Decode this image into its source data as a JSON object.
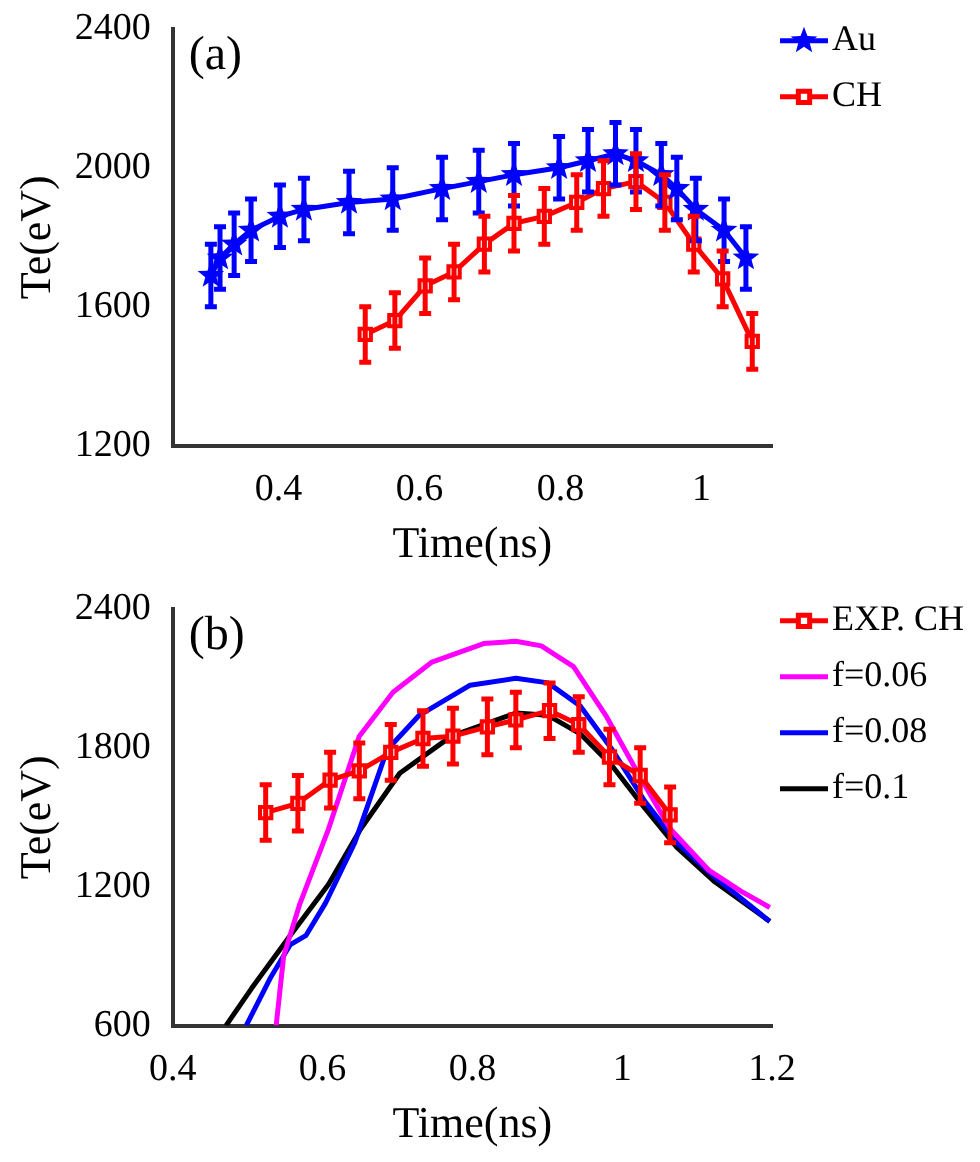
{
  "chart_data": [
    {
      "type": "line",
      "title": "(a)",
      "xlabel": "Time(ns)",
      "ylabel": "Te(eV)",
      "xlim": [
        0.25,
        1.1
      ],
      "xticks": [
        0.4,
        0.6,
        0.8,
        1
      ],
      "ylim": [
        1200,
        2400
      ],
      "yticks": [
        1200,
        1600,
        2000,
        2400
      ],
      "grid": false,
      "legend": "top right",
      "series": [
        {
          "name": "Au",
          "color": "#0000ff",
          "marker": "star",
          "x": [
            0.304,
            0.317,
            0.337,
            0.361,
            0.402,
            0.436,
            0.5,
            0.562,
            0.632,
            0.684,
            0.734,
            0.798,
            0.839,
            0.878,
            0.907,
            0.943,
            0.965,
            0.992,
            1.032,
            1.063
          ],
          "values": [
            1690,
            1740,
            1780,
            1820,
            1860,
            1880,
            1900,
            1910,
            1940,
            1960,
            1980,
            2000,
            2020,
            2040,
            2020,
            1980,
            1940,
            1880,
            1820,
            1740
          ],
          "errors": [
            90,
            90,
            90,
            90,
            90,
            90,
            90,
            90,
            90,
            90,
            90,
            90,
            90,
            90,
            90,
            90,
            90,
            90,
            90,
            90
          ]
        },
        {
          "name": "CH",
          "color": "#ff0000",
          "marker": "square",
          "x": [
            0.523,
            0.565,
            0.608,
            0.649,
            0.692,
            0.734,
            0.777,
            0.823,
            0.861,
            0.907,
            0.948,
            0.989,
            1.03,
            1.072
          ],
          "values": [
            1520,
            1560,
            1660,
            1700,
            1780,
            1840,
            1860,
            1900,
            1940,
            1960,
            1900,
            1780,
            1680,
            1500
          ],
          "errors": [
            80,
            80,
            80,
            80,
            80,
            80,
            80,
            80,
            80,
            80,
            80,
            80,
            80,
            80
          ]
        }
      ]
    },
    {
      "type": "line",
      "title": "(b)",
      "xlabel": "Time(ns)",
      "ylabel": "Te(eV)",
      "xlim": [
        0.4,
        1.2
      ],
      "xticks": [
        0.4,
        0.6,
        0.8,
        1,
        1.2
      ],
      "ylim": [
        600,
        2400
      ],
      "yticks": [
        600,
        1200,
        1800,
        2400
      ],
      "grid": false,
      "legend": "top right",
      "series": [
        {
          "name": "EXP. CH",
          "color": "#ff0000",
          "marker": "square",
          "x": [
            0.524,
            0.567,
            0.61,
            0.649,
            0.691,
            0.734,
            0.774,
            0.82,
            0.858,
            0.903,
            0.942,
            0.983,
            1.024,
            1.064
          ],
          "values": [
            1520,
            1560,
            1660,
            1700,
            1780,
            1840,
            1850,
            1890,
            1920,
            1960,
            1900,
            1760,
            1680,
            1510
          ],
          "errors": [
            120,
            120,
            120,
            120,
            120,
            120,
            120,
            120,
            120,
            120,
            120,
            120,
            120,
            120
          ]
        },
        {
          "name": "f=0.06",
          "color": "#ff00ff",
          "marker": "none",
          "x": [
            0.538,
            0.548,
            0.569,
            0.608,
            0.649,
            0.694,
            0.746,
            0.815,
            0.858,
            0.892,
            0.935,
            0.978,
            1.021,
            1.064,
            1.116,
            1.159,
            1.197
          ],
          "values": [
            600,
            900,
            1120,
            1450,
            1850,
            2040,
            2170,
            2250,
            2260,
            2240,
            2150,
            1940,
            1690,
            1450,
            1270,
            1180,
            1110
          ]
        },
        {
          "name": "f=0.08",
          "color": "#0000ff",
          "marker": "none",
          "x": [
            0.498,
            0.531,
            0.557,
            0.578,
            0.604,
            0.643,
            0.686,
            0.729,
            0.797,
            0.858,
            0.901,
            0.944,
            0.987,
            1.03,
            1.073,
            1.124,
            1.197
          ],
          "values": [
            600,
            810,
            950,
            990,
            1130,
            1390,
            1790,
            1940,
            2070,
            2100,
            2080,
            1980,
            1790,
            1570,
            1390,
            1240,
            1050
          ]
        },
        {
          "name": "f=0.1",
          "color": "#000000",
          "marker": "none",
          "x": [
            0.471,
            0.505,
            0.557,
            0.608,
            0.651,
            0.703,
            0.772,
            0.858,
            0.901,
            0.944,
            0.987,
            1.03,
            1.073,
            1.124,
            1.197
          ],
          "values": [
            600,
            760,
            990,
            1210,
            1450,
            1690,
            1850,
            1950,
            1940,
            1860,
            1720,
            1540,
            1370,
            1220,
            1050
          ]
        }
      ]
    }
  ]
}
